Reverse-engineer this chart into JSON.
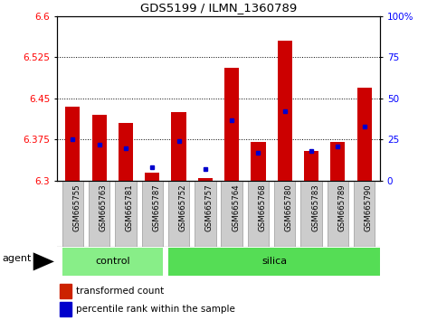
{
  "title": "GDS5199 / ILMN_1360789",
  "samples": [
    "GSM665755",
    "GSM665763",
    "GSM665781",
    "GSM665787",
    "GSM665752",
    "GSM665757",
    "GSM665764",
    "GSM665768",
    "GSM665780",
    "GSM665783",
    "GSM665789",
    "GSM665790"
  ],
  "n_control": 4,
  "n_silica": 8,
  "transformed_count": [
    6.435,
    6.42,
    6.405,
    6.315,
    6.425,
    6.305,
    6.505,
    6.37,
    6.555,
    6.355,
    6.37,
    6.47
  ],
  "percentile_rank": [
    25,
    22,
    20,
    8,
    24,
    7,
    37,
    17,
    42,
    18,
    21,
    33
  ],
  "ymin": 6.3,
  "ymax": 6.6,
  "y_ticks": [
    6.3,
    6.375,
    6.45,
    6.525,
    6.6
  ],
  "y_tick_labels": [
    "6.3",
    "6.375",
    "6.45",
    "6.525",
    "6.6"
  ],
  "right_yticks": [
    0,
    25,
    50,
    75,
    100
  ],
  "right_ytick_labels": [
    "0",
    "25",
    "50",
    "75",
    "100%"
  ],
  "bar_color": "#cc0000",
  "dot_color": "#0000cc",
  "control_color": "#88ee88",
  "silica_color": "#55dd55",
  "sample_bg_color": "#cccccc",
  "legend_bar_color": "#cc2200",
  "legend_dot_color": "#0000cc",
  "legend_label_bar": "transformed count",
  "legend_label_dot": "percentile rank within the sample",
  "group_label_control": "control",
  "group_label_silica": "silica",
  "agent_label": "agent",
  "bar_width": 0.55
}
